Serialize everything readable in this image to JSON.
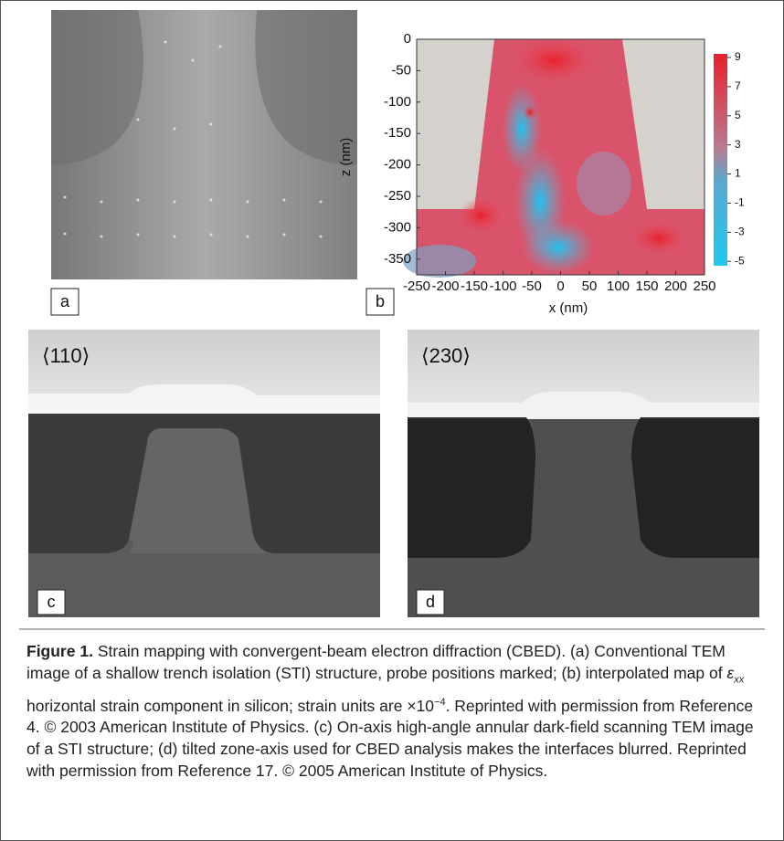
{
  "panels": {
    "a": "a",
    "b": "b",
    "c": "c",
    "d": "d",
    "c_zone": "⟨110⟩",
    "d_zone": "⟨230⟩"
  },
  "chart_data": {
    "type": "contour",
    "xlabel": "x (nm)",
    "ylabel": "z (nm)",
    "xlim": [
      -250,
      250
    ],
    "ylim": [
      -375,
      0
    ],
    "xticks": [
      -250,
      -200,
      -150,
      -100,
      -50,
      0,
      50,
      100,
      150,
      200,
      250
    ],
    "yticks": [
      0,
      -50,
      -100,
      -150,
      -200,
      -250,
      -300,
      -350
    ],
    "clim": [
      -5.3,
      9.25
    ],
    "cticks": [
      9,
      7,
      5,
      3,
      1,
      -1,
      -3,
      -5
    ]
  },
  "caption": {
    "label": "Figure 1.",
    "text_1": "Strain mapping with convergent-beam electron diffraction (CBED). (a) Conventional TEM image of a shallow trench isolation (STI) structure, probe positions marked; (b) interpolated map of ",
    "symbol": "ε",
    "subscript": "xx",
    "text_2": " horizontal strain component in silicon; strain units are ×10",
    "superscript": "−4",
    "text_3": ". Reprinted with permission from Reference 4. © 2003 American Institute of Physics. (c) On-axis high-angle annular dark-field scanning TEM image of a STI structure; (d) tilted zone-axis used for CBED analysis makes the interfaces blurred. Reprinted with permission from Reference 17. © 2005 American Institute of Physics."
  }
}
